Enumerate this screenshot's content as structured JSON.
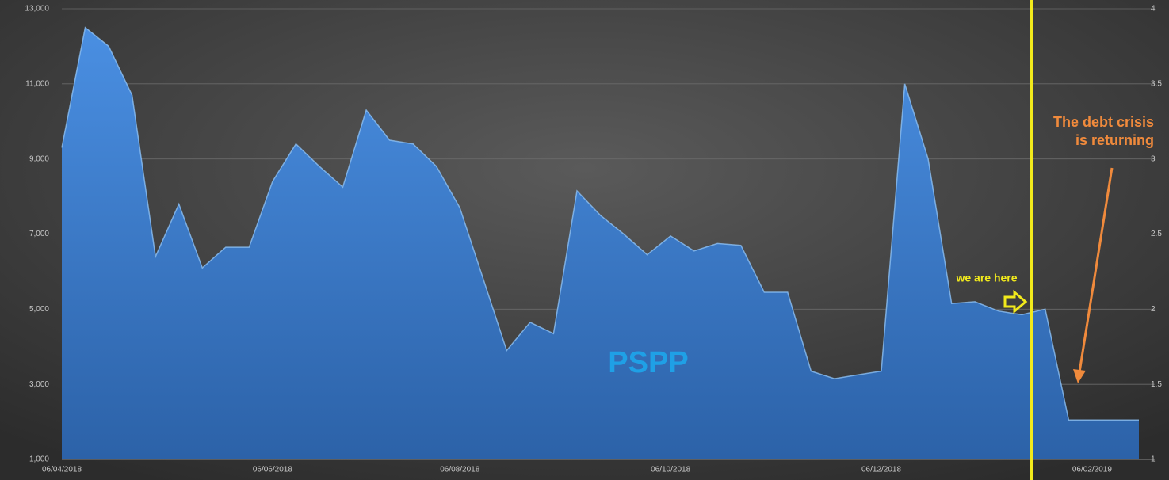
{
  "chart_data": {
    "type": "area",
    "categories": [
      "06/04/2018",
      null,
      null,
      null,
      null,
      null,
      null,
      null,
      null,
      "06/06/2018",
      null,
      null,
      null,
      null,
      null,
      null,
      null,
      "06/08/2018",
      null,
      null,
      null,
      null,
      null,
      null,
      null,
      null,
      "06/10/2018",
      null,
      null,
      null,
      null,
      null,
      null,
      null,
      null,
      "06/12/2018",
      null,
      null,
      null,
      null,
      null,
      null,
      null,
      null,
      "06/02/2019",
      null,
      null
    ],
    "series": [
      {
        "name": "PSPP",
        "color": "#3f7fd4",
        "values": [
          9300,
          12500,
          12000,
          10700,
          6400,
          7800,
          6100,
          6650,
          6650,
          8400,
          9400,
          8800,
          8250,
          10300,
          9500,
          9400,
          8800,
          7700,
          5800,
          3900,
          4650,
          4350,
          8150,
          7500,
          7000,
          6450,
          6950,
          6550,
          6750,
          6700,
          5450,
          5450,
          3350,
          3150,
          3250,
          3350,
          11000,
          9000,
          5150,
          5200,
          4950,
          4850,
          5000,
          2050,
          2050,
          2050,
          2050
        ]
      }
    ],
    "ylim": [
      1000,
      13000
    ],
    "yticks": [
      {
        "value": 1000,
        "label": "1,000"
      },
      {
        "value": 3000,
        "label": "3,000"
      },
      {
        "value": 5000,
        "label": "5,000"
      },
      {
        "value": 7000,
        "label": "7,000"
      },
      {
        "value": 9000,
        "label": "9,000"
      },
      {
        "value": 11000,
        "label": "11,000"
      },
      {
        "value": 13000,
        "label": "13,000"
      }
    ],
    "y2lim": [
      1,
      4
    ],
    "y2ticks": [
      1,
      1.5,
      2,
      2.5,
      3,
      3.5,
      4
    ],
    "grid": true,
    "annotations": {
      "series_label": "PSPP",
      "marker_label": "we are here",
      "callout": [
        "The debt crisis",
        "is returning"
      ]
    }
  }
}
